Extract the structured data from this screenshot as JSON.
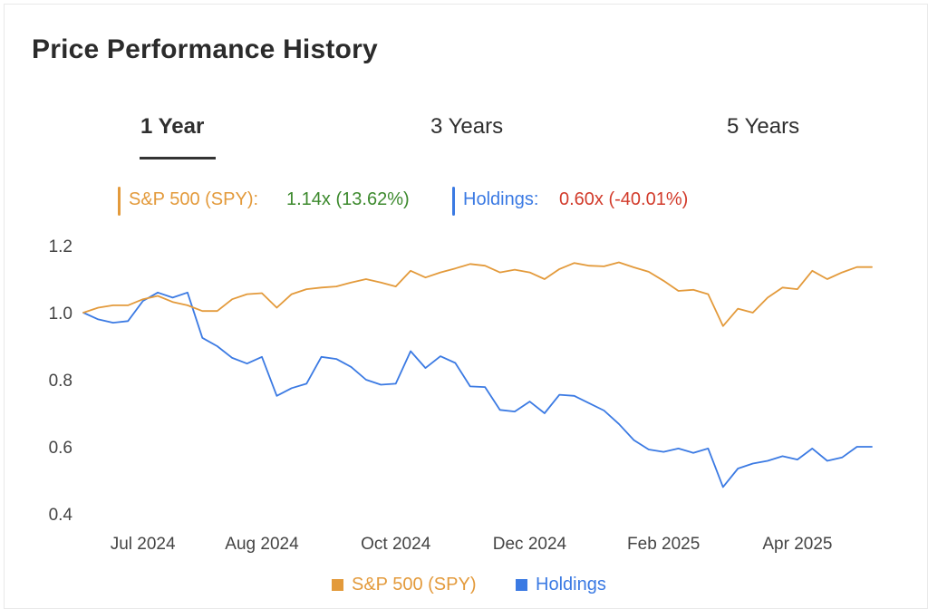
{
  "header": {
    "title": "Price Performance History"
  },
  "tabs": [
    {
      "label": "1 Year",
      "active": true
    },
    {
      "label": "3 Years",
      "active": false
    },
    {
      "label": "5 Years",
      "active": false
    }
  ],
  "summary": {
    "spy": {
      "label": "S&P 500 (SPY):",
      "value": "1.14x (13.62%)",
      "value_color": "#3d8a2e"
    },
    "holdings": {
      "label": "Holdings:",
      "value": "0.60x (-40.01%)",
      "value_color": "#d23b2b"
    }
  },
  "colors": {
    "spy": "#e39a3b",
    "holdings": "#3b7ae3",
    "grid_text": "#444444"
  },
  "legend": [
    {
      "label": "S&P 500 (SPY)",
      "color": "#e39a3b"
    },
    {
      "label": "Holdings",
      "color": "#3b7ae3"
    }
  ],
  "chart_data": {
    "type": "line",
    "title": "",
    "xlabel": "",
    "ylabel": "",
    "x_ticks": [
      "Jul 2024",
      "Aug 2024",
      "Oct 2024",
      "Dec 2024",
      "Feb 2025",
      "Apr 2025"
    ],
    "x_tick_index": [
      4,
      12,
      21,
      30,
      39,
      48
    ],
    "y_ticks": [
      0.4,
      0.6,
      0.8,
      1.0,
      1.2
    ],
    "ylim": [
      0.4,
      1.2
    ],
    "grid": false,
    "legend_position": "bottom",
    "series": [
      {
        "name": "S&P 500 (SPY)",
        "values": [
          1.0,
          1.015,
          1.022,
          1.022,
          1.04,
          1.05,
          1.032,
          1.022,
          1.005,
          1.005,
          1.04,
          1.055,
          1.058,
          1.015,
          1.055,
          1.07,
          1.075,
          1.078,
          1.09,
          1.1,
          1.09,
          1.078,
          1.125,
          1.105,
          1.12,
          1.132,
          1.145,
          1.14,
          1.12,
          1.128,
          1.12,
          1.1,
          1.13,
          1.148,
          1.14,
          1.138,
          1.15,
          1.135,
          1.122,
          1.095,
          1.065,
          1.068,
          1.055,
          0.96,
          1.012,
          1.0,
          1.045,
          1.075,
          1.07,
          1.125,
          1.1,
          1.12,
          1.136,
          1.136
        ]
      },
      {
        "name": "Holdings",
        "values": [
          1.0,
          0.98,
          0.97,
          0.975,
          1.035,
          1.06,
          1.045,
          1.06,
          0.925,
          0.9,
          0.865,
          0.848,
          0.868,
          0.752,
          0.775,
          0.788,
          0.868,
          0.862,
          0.838,
          0.8,
          0.785,
          0.788,
          0.885,
          0.835,
          0.87,
          0.85,
          0.78,
          0.778,
          0.71,
          0.705,
          0.735,
          0.7,
          0.755,
          0.752,
          0.73,
          0.708,
          0.668,
          0.62,
          0.592,
          0.585,
          0.595,
          0.582,
          0.595,
          0.48,
          0.535,
          0.55,
          0.558,
          0.572,
          0.562,
          0.595,
          0.558,
          0.568,
          0.6,
          0.6
        ]
      }
    ]
  }
}
